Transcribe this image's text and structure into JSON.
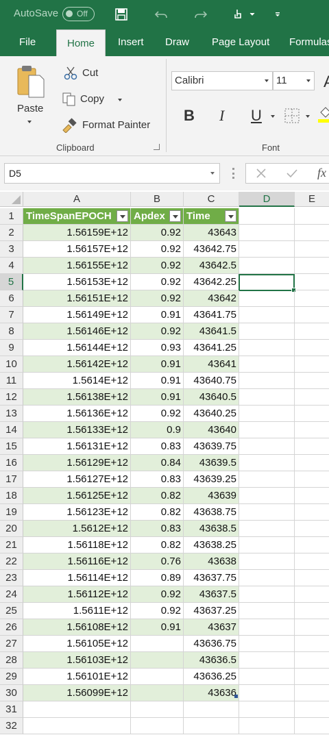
{
  "titlebar": {
    "autosave_label": "AutoSave",
    "autosave_state": "Off"
  },
  "tabs": [
    {
      "label": "File"
    },
    {
      "label": "Home"
    },
    {
      "label": "Insert"
    },
    {
      "label": "Draw"
    },
    {
      "label": "Page Layout"
    },
    {
      "label": "Formulas"
    }
  ],
  "ribbon": {
    "clipboard": {
      "paste": "Paste",
      "cut": "Cut",
      "copy": "Copy",
      "format_painter": "Format Painter",
      "group_label": "Clipboard"
    },
    "font": {
      "font_name": "Calibri",
      "font_size": "11",
      "bold": "B",
      "italic": "I",
      "underline": "U",
      "group_label": "Font",
      "grow_font": "A"
    }
  },
  "formula_bar": {
    "name_box": "D5",
    "fx": "fx"
  },
  "columns": [
    "A",
    "B",
    "C",
    "D",
    "E"
  ],
  "selected_column": "D",
  "selected_row": 5,
  "table": {
    "headers": [
      "TimeSpanEPOCH",
      "Apdex",
      "Time"
    ],
    "rows": [
      [
        "1.56159E+12",
        "0.92",
        "43643"
      ],
      [
        "1.56157E+12",
        "0.92",
        "43642.75"
      ],
      [
        "1.56155E+12",
        "0.92",
        "43642.5"
      ],
      [
        "1.56153E+12",
        "0.92",
        "43642.25"
      ],
      [
        "1.56151E+12",
        "0.92",
        "43642"
      ],
      [
        "1.56149E+12",
        "0.91",
        "43641.75"
      ],
      [
        "1.56146E+12",
        "0.92",
        "43641.5"
      ],
      [
        "1.56144E+12",
        "0.93",
        "43641.25"
      ],
      [
        "1.56142E+12",
        "0.91",
        "43641"
      ],
      [
        "1.5614E+12",
        "0.91",
        "43640.75"
      ],
      [
        "1.56138E+12",
        "0.91",
        "43640.5"
      ],
      [
        "1.56136E+12",
        "0.92",
        "43640.25"
      ],
      [
        "1.56133E+12",
        "0.9",
        "43640"
      ],
      [
        "1.56131E+12",
        "0.83",
        "43639.75"
      ],
      [
        "1.56129E+12",
        "0.84",
        "43639.5"
      ],
      [
        "1.56127E+12",
        "0.83",
        "43639.25"
      ],
      [
        "1.56125E+12",
        "0.82",
        "43639"
      ],
      [
        "1.56123E+12",
        "0.82",
        "43638.75"
      ],
      [
        "1.5612E+12",
        "0.83",
        "43638.5"
      ],
      [
        "1.56118E+12",
        "0.82",
        "43638.25"
      ],
      [
        "1.56116E+12",
        "0.76",
        "43638"
      ],
      [
        "1.56114E+12",
        "0.89",
        "43637.75"
      ],
      [
        "1.56112E+12",
        "0.92",
        "43637.5"
      ],
      [
        "1.5611E+12",
        "0.92",
        "43637.25"
      ],
      [
        "1.56108E+12",
        "0.91",
        "43637"
      ],
      [
        "1.56105E+12",
        "",
        "43636.75"
      ],
      [
        "1.56103E+12",
        "",
        "43636.5"
      ],
      [
        "1.56101E+12",
        "",
        "43636.25"
      ],
      [
        "1.56099E+12",
        "",
        "43636"
      ]
    ]
  },
  "row_numbers": [
    1,
    2,
    3,
    4,
    5,
    6,
    7,
    8,
    9,
    10,
    11,
    12,
    13,
    14,
    15,
    16,
    17,
    18,
    19,
    20,
    21,
    22,
    23,
    24,
    25,
    26,
    27,
    28,
    29,
    30,
    31,
    32
  ],
  "colors": {
    "accent": "#217346",
    "table_header": "#70ad47",
    "band": "#e2efda"
  }
}
